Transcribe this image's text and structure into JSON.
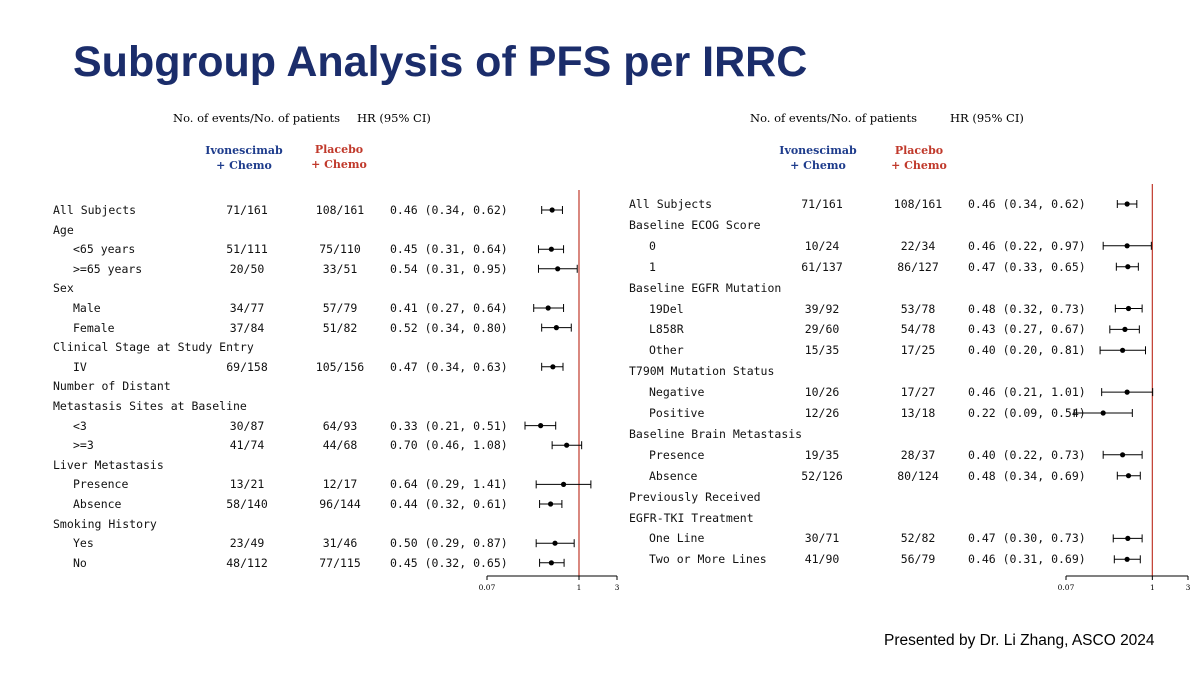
{
  "title": "Subgroup Analysis of PFS per IRRC",
  "footer": "Presented by Dr. Li Zhang, ASCO 2024",
  "colors": {
    "title": "#1b2d6b",
    "ivonescimab": "#1e3c8c",
    "placebo": "#c0392b",
    "reference_line": "#c0392b"
  },
  "headers": {
    "events": "No. of events/No. of patients",
    "hr": "HR (95% CI)",
    "arm1_line1": "Ivonescimab",
    "arm1_line2": "+ Chemo",
    "arm2_line1": "Placebo",
    "arm2_line2": "+ Chemo"
  },
  "chart_data": [
    {
      "type": "forest",
      "x_scale": "log",
      "xlim": [
        0.07,
        3
      ],
      "ticks": [
        "0.07",
        "1",
        "3"
      ],
      "reference_line": 1,
      "rows": [
        {
          "label": "All Subjects",
          "indent": 0,
          "ivo": "71/161",
          "pla": "108/161",
          "ci_text": "0.46 (0.34, 0.62)",
          "hr": 0.46,
          "lo": 0.34,
          "hi": 0.62
        },
        {
          "label": "Age",
          "indent": 0
        },
        {
          "label": "<65 years",
          "indent": 1,
          "ivo": "51/111",
          "pla": "75/110",
          "ci_text": "0.45 (0.31, 0.64)",
          "hr": 0.45,
          "lo": 0.31,
          "hi": 0.64
        },
        {
          "label": ">=65 years",
          "indent": 1,
          "ivo": "20/50",
          "pla": "33/51",
          "ci_text": "0.54 (0.31, 0.95)",
          "hr": 0.54,
          "lo": 0.31,
          "hi": 0.95
        },
        {
          "label": "Sex",
          "indent": 0
        },
        {
          "label": "Male",
          "indent": 1,
          "ivo": "34/77",
          "pla": "57/79",
          "ci_text": "0.41 (0.27, 0.64)",
          "hr": 0.41,
          "lo": 0.27,
          "hi": 0.64
        },
        {
          "label": "Female",
          "indent": 1,
          "ivo": "37/84",
          "pla": "51/82",
          "ci_text": "0.52 (0.34, 0.80)",
          "hr": 0.52,
          "lo": 0.34,
          "hi": 0.8
        },
        {
          "label": "Clinical Stage at Study Entry",
          "indent": 0
        },
        {
          "label": "IV",
          "indent": 1,
          "ivo": "69/158",
          "pla": "105/156",
          "ci_text": "0.47 (0.34, 0.63)",
          "hr": 0.47,
          "lo": 0.34,
          "hi": 0.63
        },
        {
          "label": "Number of Distant",
          "indent": 0
        },
        {
          "label": "Metastasis Sites at Baseline",
          "indent": 0
        },
        {
          "label": "<3",
          "indent": 1,
          "ivo": "30/87",
          "pla": "64/93",
          "ci_text": "0.33 (0.21, 0.51)",
          "hr": 0.33,
          "lo": 0.21,
          "hi": 0.51
        },
        {
          "label": ">=3",
          "indent": 1,
          "ivo": "41/74",
          "pla": "44/68",
          "ci_text": "0.70 (0.46, 1.08)",
          "hr": 0.7,
          "lo": 0.46,
          "hi": 1.08
        },
        {
          "label": "Liver Metastasis",
          "indent": 0
        },
        {
          "label": "Presence",
          "indent": 1,
          "ivo": "13/21",
          "pla": "12/17",
          "ci_text": "0.64 (0.29, 1.41)",
          "hr": 0.64,
          "lo": 0.29,
          "hi": 1.41
        },
        {
          "label": "Absence",
          "indent": 1,
          "ivo": "58/140",
          "pla": "96/144",
          "ci_text": "0.44 (0.32, 0.61)",
          "hr": 0.44,
          "lo": 0.32,
          "hi": 0.61
        },
        {
          "label": "Smoking History",
          "indent": 0
        },
        {
          "label": "Yes",
          "indent": 1,
          "ivo": "23/49",
          "pla": "31/46",
          "ci_text": "0.50 (0.29, 0.87)",
          "hr": 0.5,
          "lo": 0.29,
          "hi": 0.87
        },
        {
          "label": "No",
          "indent": 1,
          "ivo": "48/112",
          "pla": "77/115",
          "ci_text": "0.45 (0.32, 0.65)",
          "hr": 0.45,
          "lo": 0.32,
          "hi": 0.65
        }
      ]
    },
    {
      "type": "forest",
      "x_scale": "log",
      "xlim": [
        0.07,
        3
      ],
      "ticks": [
        "0.07",
        "1",
        "3"
      ],
      "reference_line": 1,
      "rows": [
        {
          "label": "All Subjects",
          "indent": 0,
          "ivo": "71/161",
          "pla": "108/161",
          "ci_text": "0.46 (0.34, 0.62)",
          "hr": 0.46,
          "lo": 0.34,
          "hi": 0.62
        },
        {
          "label": "Baseline ECOG Score",
          "indent": 0
        },
        {
          "label": "0",
          "indent": 1,
          "ivo": "10/24",
          "pla": "22/34",
          "ci_text": "0.46 (0.22, 0.97)",
          "hr": 0.46,
          "lo": 0.22,
          "hi": 0.97
        },
        {
          "label": "1",
          "indent": 1,
          "ivo": "61/137",
          "pla": "86/127",
          "ci_text": "0.47 (0.33, 0.65)",
          "hr": 0.47,
          "lo": 0.33,
          "hi": 0.65
        },
        {
          "label": "Baseline EGFR Mutation",
          "indent": 0
        },
        {
          "label": "19Del",
          "indent": 1,
          "ivo": "39/92",
          "pla": "53/78",
          "ci_text": "0.48 (0.32, 0.73)",
          "hr": 0.48,
          "lo": 0.32,
          "hi": 0.73
        },
        {
          "label": "L858R",
          "indent": 1,
          "ivo": "29/60",
          "pla": "54/78",
          "ci_text": "0.43 (0.27, 0.67)",
          "hr": 0.43,
          "lo": 0.27,
          "hi": 0.67
        },
        {
          "label": "Other",
          "indent": 1,
          "ivo": "15/35",
          "pla": "17/25",
          "ci_text": "0.40 (0.20, 0.81)",
          "hr": 0.4,
          "lo": 0.2,
          "hi": 0.81
        },
        {
          "label": "T790M Mutation Status",
          "indent": 0
        },
        {
          "label": "Negative",
          "indent": 1,
          "ivo": "10/26",
          "pla": "17/27",
          "ci_text": "0.46 (0.21, 1.01)",
          "hr": 0.46,
          "lo": 0.21,
          "hi": 1.01
        },
        {
          "label": "Positive",
          "indent": 1,
          "ivo": "12/26",
          "pla": "13/18",
          "ci_text": "0.22 (0.09, 0.54)",
          "hr": 0.22,
          "lo": 0.09,
          "hi": 0.54
        },
        {
          "label": "Baseline Brain Metastasis",
          "indent": 0
        },
        {
          "label": "Presence",
          "indent": 1,
          "ivo": "19/35",
          "pla": "28/37",
          "ci_text": "0.40 (0.22, 0.73)",
          "hr": 0.4,
          "lo": 0.22,
          "hi": 0.73
        },
        {
          "label": "Absence",
          "indent": 1,
          "ivo": "52/126",
          "pla": "80/124",
          "ci_text": "0.48 (0.34, 0.69)",
          "hr": 0.48,
          "lo": 0.34,
          "hi": 0.69
        },
        {
          "label": "Previously Received",
          "indent": 0
        },
        {
          "label": "EGFR-TKI Treatment",
          "indent": 0
        },
        {
          "label": "One Line",
          "indent": 1,
          "ivo": "30/71",
          "pla": "52/82",
          "ci_text": "0.47 (0.30, 0.73)",
          "hr": 0.47,
          "lo": 0.3,
          "hi": 0.73
        },
        {
          "label": "Two or More Lines",
          "indent": 1,
          "ivo": "41/90",
          "pla": "56/79",
          "ci_text": "0.46 (0.31, 0.69)",
          "hr": 0.46,
          "lo": 0.31,
          "hi": 0.69
        }
      ]
    }
  ]
}
